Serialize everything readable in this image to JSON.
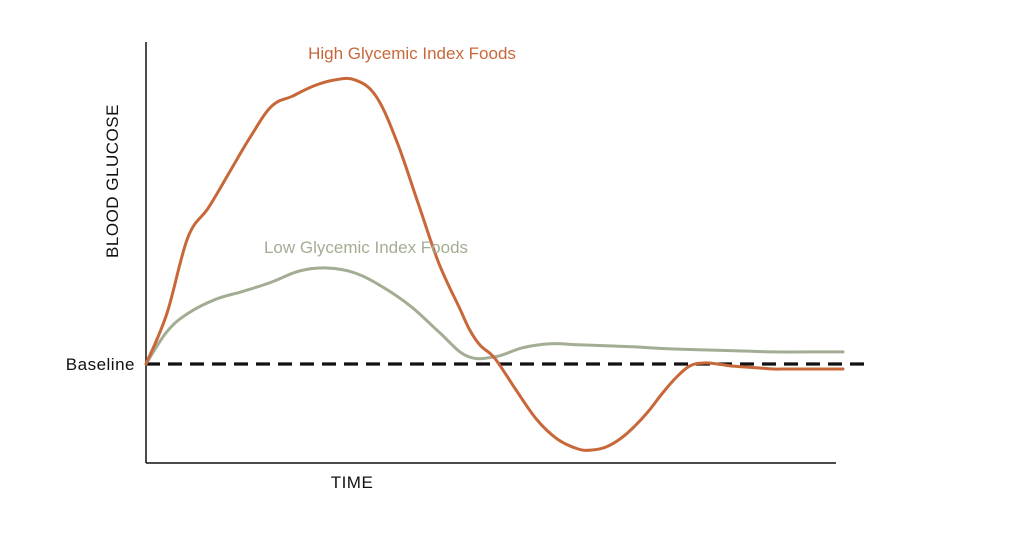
{
  "chart_data": {
    "type": "line",
    "title": "",
    "xlabel": "TIME",
    "ylabel": "BLOOD GLUCOSE",
    "xlim": [
      0,
      100
    ],
    "ylim": [
      -10,
      30
    ],
    "baseline": {
      "label": "Baseline",
      "value": 0
    },
    "grid": false,
    "series": [
      {
        "name": "High Glycemic Index Foods",
        "color": "#c8683a",
        "x": [
          0,
          3,
          6,
          9,
          12,
          15,
          18,
          21,
          24,
          27,
          30,
          33,
          36,
          39,
          42,
          45,
          46.5,
          48,
          50,
          53,
          56,
          59,
          62,
          64,
          66,
          68,
          70,
          72,
          74,
          76,
          78,
          80,
          82,
          84,
          86,
          88,
          90,
          92,
          94,
          96,
          98,
          100
        ],
        "y": [
          0,
          5,
          12.5,
          15.5,
          19,
          22.5,
          25.5,
          26.5,
          27.5,
          28.1,
          28.1,
          26.5,
          22,
          16,
          10,
          5.5,
          3.3,
          1.8,
          0.6,
          -2.5,
          -5.5,
          -7.5,
          -8.5,
          -8.6,
          -8.3,
          -7.5,
          -6.3,
          -4.8,
          -3.0,
          -1.4,
          -0.2,
          0.1,
          0.0,
          -0.2,
          -0.3,
          -0.4,
          -0.5,
          -0.5,
          -0.5,
          -0.5,
          -0.5,
          -0.5
        ]
      },
      {
        "name": "Low Glycemic Index Foods",
        "color": "#a3ad94",
        "x": [
          0,
          3,
          6,
          10,
          14,
          18,
          22,
          26,
          30,
          34,
          38,
          42,
          46,
          50,
          54,
          58,
          62,
          66,
          70,
          75,
          80,
          85,
          90,
          95,
          100
        ],
        "y": [
          0,
          3.2,
          5.0,
          6.4,
          7.2,
          8.1,
          9.2,
          9.5,
          9.0,
          7.6,
          5.7,
          3.2,
          0.8,
          0.7,
          1.6,
          2.0,
          1.9,
          1.8,
          1.7,
          1.5,
          1.4,
          1.3,
          1.2,
          1.2,
          1.2
        ]
      }
    ],
    "annotations": [
      {
        "text": "High Glycemic Index Foods",
        "color": "#c8683a"
      },
      {
        "text": "Low Glycemic Index Foods",
        "color": "#a3ad94"
      }
    ]
  }
}
